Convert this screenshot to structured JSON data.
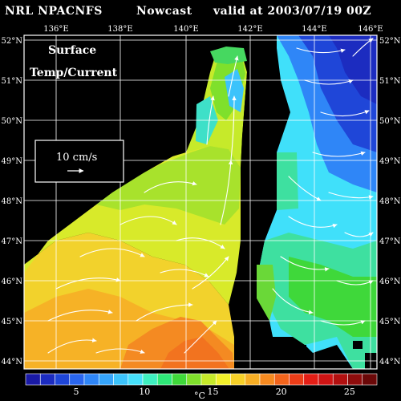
{
  "header": {
    "source": "NRL NPACNFS",
    "product": "Nowcast",
    "valid": "valid at 2003/07/19 00Z"
  },
  "map_text": {
    "field_line1": "Surface",
    "field_line2": "Temp/Current",
    "scale_label": "10 cm/s"
  },
  "axes": {
    "lon_labels": [
      "136°E",
      "138°E",
      "140°E",
      "142°E",
      "144°E",
      "146°E"
    ],
    "lat_labels": [
      "52°N",
      "51°N",
      "50°N",
      "49°N",
      "48°N",
      "47°N",
      "46°N",
      "45°N",
      "44°N"
    ]
  },
  "colorbar": {
    "unit": "°C",
    "tick_labels": [
      "5",
      "10",
      "15",
      "20",
      "25"
    ],
    "colors": [
      "#1a1aa6",
      "#1c2cc0",
      "#1f46d8",
      "#2a66ee",
      "#2f86f7",
      "#35a4fa",
      "#3cc3fb",
      "#46e0fb",
      "#3ef0c0",
      "#2ee878",
      "#3fd83a",
      "#7fe02c",
      "#c6ea2a",
      "#f2f02a",
      "#f7d027",
      "#f7ae24",
      "#f68a20",
      "#f2641c",
      "#ec3d18",
      "#e41e16",
      "#cf1414",
      "#b21010",
      "#8e0c0c",
      "#6a0808"
    ]
  },
  "colors": {
    "land": "#000000",
    "grid": "#ffffff",
    "text": "#ffffff"
  }
}
